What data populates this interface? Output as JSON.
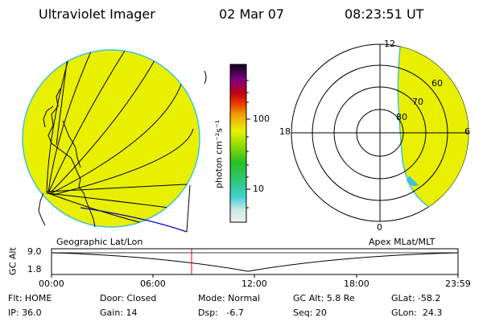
{
  "header": {
    "instrument": "Ultraviolet Imager",
    "date": "02 Mar 07",
    "time": "08:23:51 UT"
  },
  "colorbar": {
    "unit_label": "photon cm⁻²s⁻¹",
    "tick_100": "100",
    "tick_10": "10",
    "scale": "log"
  },
  "polar_plot": {
    "label_top": "12",
    "label_left": "18",
    "label_right": "6",
    "label_bottom": "0",
    "lat_80": "80",
    "lat_70": "70",
    "lat_60": "60"
  },
  "colors": {
    "emission_fill": "#e8f000",
    "emission_edge": "#40c0e0",
    "marker": "#e00000",
    "coastline": "#0000c0"
  },
  "timeline": {
    "ylabel": "GC Alt",
    "ytick_top": "9.0",
    "ytick_bottom": "1.8",
    "left_label": "Geographic Lat/Lon",
    "right_label": "Apex MLat/MLT",
    "x_ticks": [
      "00:00",
      "06:00",
      "12:00",
      "18:00",
      "23:59"
    ]
  },
  "status": {
    "flt": "Flt: HOME",
    "ip": "IP: 36.0",
    "door": "Door: Closed",
    "gain": "Gain: 14",
    "mode": "Mode: Normal",
    "dsp": "Dsp:   -6.7",
    "gcalt": "GC Alt: 5.8 Re",
    "seq": "Seq: 20",
    "glat": "GLat: -58.2",
    "glon": "GLon:  24.3"
  }
}
